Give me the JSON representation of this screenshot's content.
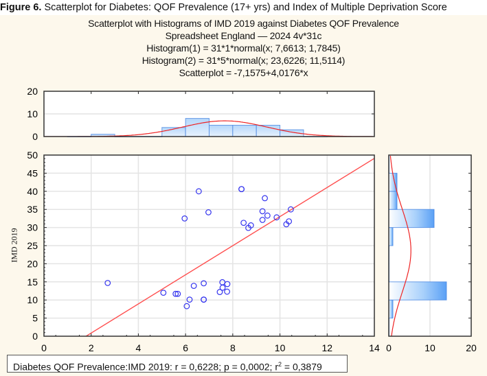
{
  "figure": {
    "label": "Figure 6.",
    "caption": "Scatterplot for Diabetes: QOF Prevalence (17+ yrs) and Index of Multiple Deprivation Score"
  },
  "titles": {
    "line1": "Scatterplot with Histograms of IMD 2019 against Diabetes QOF Prevalence",
    "line2": "Spreadsheet England — 2024 4v*31c",
    "line3": "Histogram(1) = 31*1*normal(x; 7,6613; 1,7845)",
    "line4": "Histogram(2) = 31*5*normal(x; 23,6226; 11,5114)",
    "line5": "Scatterplot = -7,1575+4,0176*x"
  },
  "footer": {
    "prefix": "Diabetes QOF Prevalence:IMD 2019:   r = 0,6228; p = 0,0002; r",
    "sup": "2",
    "suffix": " = 0,3879"
  },
  "colors": {
    "points": "#3333ee",
    "fit_line": "#ff4d4d",
    "bar_fill": "#bcdcfc",
    "bar_edge": "#4a86e0",
    "grid": "#e4e4e4",
    "background": "#fdf8ec"
  },
  "chart_data": [
    {
      "type": "scatter",
      "ylabel": "IMD 2019",
      "xlabel": "",
      "xlim": [
        0,
        14
      ],
      "ylim": [
        0,
        50
      ],
      "xticks": [
        "0",
        "2",
        "4",
        "6",
        "8",
        "10",
        "12",
        "14"
      ],
      "yticks": [
        "0",
        "5",
        "10",
        "15",
        "20",
        "25",
        "30",
        "35",
        "40",
        "45",
        "50"
      ],
      "grid": true,
      "fit": {
        "intercept": -7.1575,
        "slope": 4.0176
      },
      "points": [
        [
          2.7,
          14.7
        ],
        [
          5.06,
          12.0
        ],
        [
          5.58,
          11.7
        ],
        [
          5.67,
          11.7
        ],
        [
          5.96,
          32.5
        ],
        [
          6.05,
          8.3
        ],
        [
          6.17,
          10.1
        ],
        [
          6.35,
          13.9
        ],
        [
          6.56,
          40.0
        ],
        [
          6.77,
          14.6
        ],
        [
          6.77,
          10.1
        ],
        [
          6.77,
          10.1
        ],
        [
          6.97,
          34.2
        ],
        [
          7.45,
          12.2
        ],
        [
          7.56,
          14.9
        ],
        [
          7.57,
          13.4
        ],
        [
          7.76,
          12.3
        ],
        [
          7.77,
          14.4
        ],
        [
          8.37,
          40.6
        ],
        [
          8.37,
          40.6
        ],
        [
          8.46,
          31.3
        ],
        [
          8.66,
          29.9
        ],
        [
          8.77,
          30.6
        ],
        [
          9.26,
          34.5
        ],
        [
          9.26,
          32.1
        ],
        [
          9.36,
          38.1
        ],
        [
          9.47,
          33.3
        ],
        [
          9.86,
          32.8
        ],
        [
          10.27,
          30.9
        ],
        [
          10.38,
          31.7
        ],
        [
          10.46,
          35.0
        ]
      ]
    },
    {
      "type": "bar",
      "orientation": "vertical",
      "bin_edges": [
        1,
        2,
        3,
        4,
        5,
        6,
        7,
        8,
        9,
        10,
        11,
        12
      ],
      "values": [
        0,
        1,
        0,
        0,
        4,
        8,
        5,
        5,
        5,
        3,
        0
      ],
      "xlim": [
        0,
        14
      ],
      "ylim": [
        0,
        20
      ],
      "yticks": [
        "0",
        "10",
        "20"
      ],
      "normal_fit": {
        "n": 31,
        "binwidth": 1,
        "mean": 7.6613,
        "sd": 1.7845
      }
    },
    {
      "type": "bar",
      "orientation": "horizontal",
      "bin_edges": [
        0,
        5,
        10,
        15,
        20,
        25,
        30,
        35,
        40,
        45,
        50
      ],
      "values": [
        0,
        1,
        14,
        0,
        0,
        1,
        11,
        2,
        2,
        0
      ],
      "xlim": [
        0,
        20
      ],
      "ylim": [
        0,
        50
      ],
      "xticks": [
        "0",
        "10",
        "20"
      ],
      "normal_fit": {
        "n": 31,
        "binwidth": 5,
        "mean": 23.6226,
        "sd": 11.5114
      }
    }
  ]
}
